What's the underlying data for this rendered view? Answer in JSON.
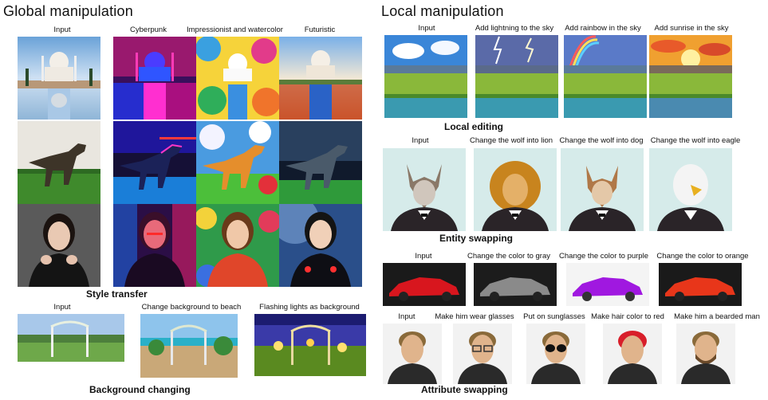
{
  "global": {
    "title": "Global manipulation",
    "style_transfer": {
      "label": "Style transfer",
      "columns": [
        "Input",
        "Cyberpunk",
        "Impressionist and watercolor",
        "Futuristic"
      ]
    },
    "background": {
      "label": "Background changing",
      "columns": [
        "Input",
        "Change background to beach",
        "Flashing lights as background"
      ]
    }
  },
  "local": {
    "title": "Local manipulation",
    "local_editing": {
      "label": "Local editing",
      "columns": [
        "Input",
        "Add lightning to the sky",
        "Add rainbow in the sky",
        "Add sunrise in the sky"
      ]
    },
    "entity": {
      "label": "Entity swapping",
      "columns": [
        "Input",
        "Change the wolf into lion",
        "Change the wolf into dog",
        "Change the wolf into eagle"
      ]
    },
    "color": {
      "columns": [
        "Input",
        "Change the color to gray",
        "Change the color to purple",
        "Change the color to orange"
      ]
    },
    "attribute": {
      "label": "Attribute swapping",
      "columns": [
        "Input",
        "Make him wear glasses",
        "Put on sunglasses",
        "Make hair color to red",
        "Make him a bearded man"
      ]
    }
  }
}
